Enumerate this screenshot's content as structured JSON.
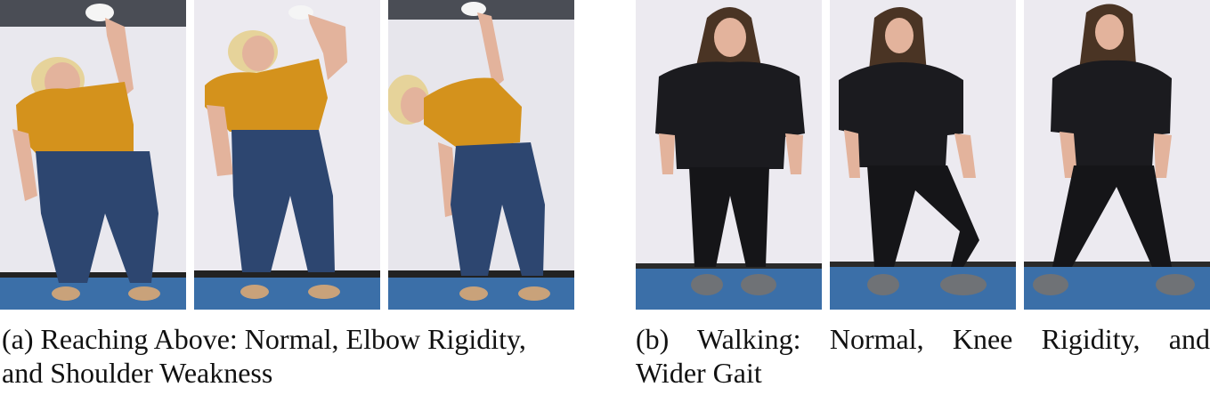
{
  "figure": {
    "panels": [
      {
        "id": "a",
        "caption_line1": "(a) Reaching Above: Normal, Elbow Rigidity,",
        "caption_line2": "and Shoulder Weakness",
        "frames": [
          "normal",
          "elbow-rigidity",
          "shoulder-weakness"
        ]
      },
      {
        "id": "b",
        "caption_line1": "(b) Walking: Normal, Knee Rigidity, and",
        "caption_line2": "Wider Gait",
        "frames": [
          "normal",
          "knee-rigidity",
          "wider-gait"
        ]
      }
    ],
    "colors": {
      "wall": "#e9e8ee",
      "floor": "#3b6fa8",
      "top-shirt-a": "#d4921c",
      "jeans-a": "#2d4670",
      "hair-a": "#e6d39a",
      "skin": "#e3b39c",
      "shirt-b": "#1b1b1f",
      "hair-b": "#4a3424"
    }
  }
}
